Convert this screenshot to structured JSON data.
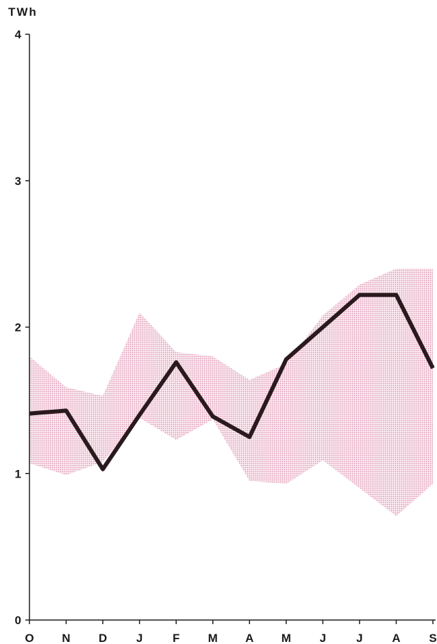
{
  "chart_data": {
    "type": "line",
    "ylabel": "TWh",
    "ylim": [
      0,
      4
    ],
    "yticks": [
      "0",
      "1",
      "2",
      "3",
      "4"
    ],
    "categories": [
      "O",
      "N",
      "D",
      "J",
      "F",
      "M",
      "A",
      "M",
      "J",
      "J",
      "A",
      "S"
    ],
    "grid": false,
    "series": [
      {
        "values": [
          1.41,
          1.43,
          1.03,
          1.4,
          1.76,
          1.39,
          1.25,
          1.78,
          2.0,
          2.22,
          2.22,
          1.72
        ]
      }
    ],
    "band": {
      "upper": [
        1.8,
        1.59,
        1.53,
        2.1,
        1.83,
        1.8,
        1.64,
        1.75,
        2.08,
        2.29,
        2.4,
        2.4
      ],
      "lower": [
        1.07,
        0.99,
        1.08,
        1.38,
        1.23,
        1.37,
        0.95,
        0.93,
        1.09,
        0.9,
        0.71,
        0.93
      ]
    },
    "colors": {
      "line": "#2a1a1e",
      "band": "#e9a9c2",
      "axis": "#1a1a1a"
    }
  }
}
